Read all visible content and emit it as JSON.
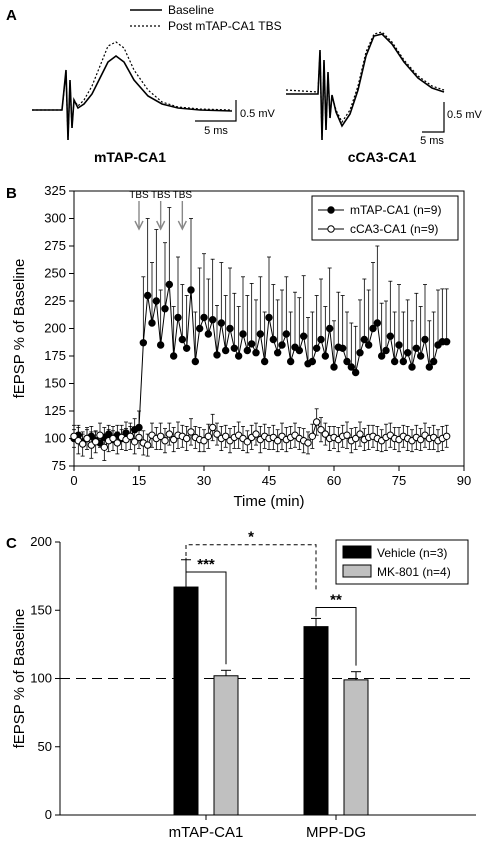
{
  "panel_a": {
    "letter": "A",
    "legend": {
      "baseline": "Baseline",
      "post": "Post mTAP-CA1 TBS"
    },
    "traces": [
      {
        "label": "mTAP-CA1",
        "time_scale": "5 ms",
        "amp_scale": "0.5 mV"
      },
      {
        "label": "cCA3-CA1",
        "time_scale": "5 ms",
        "amp_scale": "0.5 mV"
      }
    ]
  },
  "chart_data": [
    {
      "panel": "B",
      "type": "scatter",
      "xlabel": "Time (min)",
      "ylabel": "fEPSP % of Baseline",
      "xlim": [
        0,
        90
      ],
      "ylim": [
        75,
        325
      ],
      "xticks": [
        "0",
        "15",
        "30",
        "45",
        "60",
        "75",
        "90"
      ],
      "yticks": [
        "75",
        "100",
        "125",
        "150",
        "175",
        "200",
        "225",
        "250",
        "275",
        "300",
        "325"
      ],
      "annotations": [
        "TBS",
        "TBS",
        "TBS"
      ],
      "tbs_times": [
        15,
        20,
        25
      ],
      "legend_position": "top-right",
      "series": [
        {
          "name": "mTAP-CA1 (n=9)",
          "marker": "filled",
          "x": [
            0,
            1,
            2,
            3,
            4,
            5,
            6,
            7,
            8,
            9,
            10,
            11,
            12,
            13,
            14,
            15,
            16,
            17,
            18,
            19,
            20,
            21,
            22,
            23,
            24,
            25,
            26,
            27,
            28,
            29,
            30,
            31,
            32,
            33,
            34,
            35,
            36,
            37,
            38,
            39,
            40,
            41,
            42,
            43,
            44,
            45,
            46,
            47,
            48,
            49,
            50,
            51,
            52,
            53,
            54,
            55,
            56,
            57,
            58,
            59,
            60,
            61,
            62,
            63,
            64,
            65,
            66,
            67,
            68,
            69,
            70,
            71,
            72,
            73,
            74,
            75,
            76,
            77,
            78,
            79,
            80,
            81,
            82,
            83,
            84,
            85,
            86
          ],
          "y": [
            100,
            103,
            97,
            100,
            102,
            98,
            96,
            101,
            104,
            99,
            103,
            100,
            105,
            102,
            108,
            110,
            187,
            230,
            205,
            225,
            185,
            218,
            240,
            175,
            210,
            190,
            182,
            235,
            170,
            200,
            210,
            195,
            208,
            176,
            205,
            180,
            200,
            182,
            175,
            195,
            180,
            186,
            178,
            195,
            170,
            210,
            190,
            178,
            185,
            195,
            170,
            183,
            180,
            193,
            168,
            170,
            182,
            190,
            175,
            200,
            165,
            183,
            182,
            170,
            165,
            160,
            178,
            190,
            185,
            200,
            205,
            175,
            180,
            193,
            170,
            185,
            170,
            178,
            165,
            182,
            175,
            190,
            165,
            170,
            185,
            188,
            188
          ],
          "err": [
            8,
            9,
            7,
            8,
            9,
            8,
            7,
            9,
            8,
            8,
            9,
            8,
            10,
            9,
            10,
            15,
            60,
            70,
            55,
            65,
            50,
            60,
            70,
            45,
            55,
            50,
            48,
            65,
            45,
            55,
            58,
            50,
            55,
            45,
            55,
            50,
            55,
            50,
            45,
            52,
            50,
            55,
            48,
            52,
            45,
            55,
            50,
            48,
            50,
            52,
            45,
            50,
            48,
            55,
            42,
            45,
            48,
            55,
            45,
            55,
            42,
            50,
            48,
            45,
            40,
            42,
            48,
            55,
            50,
            60,
            70,
            48,
            45,
            50,
            45,
            55,
            45,
            48,
            42,
            50,
            45,
            50,
            42,
            45,
            50,
            48,
            48
          ]
        },
        {
          "name": "cCA3-CA1 (n=9)",
          "marker": "open",
          "x": [
            0,
            1,
            2,
            3,
            4,
            5,
            6,
            7,
            8,
            9,
            10,
            11,
            12,
            13,
            14,
            15,
            16,
            17,
            18,
            19,
            20,
            21,
            22,
            23,
            24,
            25,
            26,
            27,
            28,
            29,
            30,
            31,
            32,
            33,
            34,
            35,
            36,
            37,
            38,
            39,
            40,
            41,
            42,
            43,
            44,
            45,
            46,
            47,
            48,
            49,
            50,
            51,
            52,
            53,
            54,
            55,
            56,
            57,
            58,
            59,
            60,
            61,
            62,
            63,
            64,
            65,
            66,
            67,
            68,
            69,
            70,
            71,
            72,
            73,
            74,
            75,
            76,
            77,
            78,
            79,
            80,
            81,
            82,
            83,
            84,
            85,
            86
          ],
          "y": [
            102,
            98,
            95,
            100,
            94,
            97,
            103,
            92,
            98,
            100,
            96,
            101,
            99,
            102,
            97,
            101,
            96,
            94,
            103,
            100,
            102,
            98,
            104,
            99,
            103,
            102,
            100,
            106,
            101,
            99,
            98,
            102,
            110,
            104,
            100,
            102,
            98,
            101,
            103,
            100,
            97,
            101,
            104,
            99,
            102,
            100,
            101,
            98,
            102,
            99,
            101,
            103,
            100,
            98,
            96,
            102,
            115,
            108,
            104,
            100,
            101,
            99,
            102,
            103,
            98,
            100,
            104,
            99,
            101,
            102,
            100,
            98,
            101,
            103,
            100,
            99,
            102,
            100,
            98,
            101,
            99,
            103,
            100,
            101,
            98,
            100,
            102
          ],
          "err": [
            10,
            12,
            11,
            10,
            12,
            10,
            11,
            12,
            10,
            11,
            10,
            11,
            10,
            12,
            11,
            10,
            11,
            10,
            11,
            10,
            12,
            11,
            10,
            11,
            12,
            10,
            11,
            12,
            10,
            11,
            10,
            11,
            12,
            10,
            11,
            10,
            11,
            10,
            12,
            11,
            10,
            11,
            10,
            12,
            11,
            10,
            11,
            10,
            12,
            11,
            10,
            11,
            10,
            11,
            10,
            11,
            12,
            11,
            10,
            11,
            10,
            11,
            10,
            12,
            11,
            10,
            11,
            10,
            11,
            10,
            11,
            10,
            12,
            11,
            10,
            11,
            10,
            11,
            10,
            11,
            10,
            11,
            10,
            11,
            10,
            11,
            10
          ]
        }
      ]
    },
    {
      "panel": "C",
      "type": "bar",
      "ylabel": "fEPSP % of Baseline",
      "ylim": [
        0,
        200
      ],
      "yticks": [
        "0",
        "50",
        "100",
        "150",
        "200"
      ],
      "categories": [
        "mTAP-CA1",
        "MPP-DG"
      ],
      "reference_line": 100,
      "legend_position": "top-right",
      "series": [
        {
          "name": "Vehicle (n=3)",
          "color": "#000000",
          "values": [
            167,
            138
          ],
          "err": [
            20,
            6
          ]
        },
        {
          "name": "MK-801 (n=4)",
          "color": "#c0c0c0",
          "values": [
            102,
            99
          ],
          "err": [
            4,
            6
          ]
        }
      ],
      "significance": [
        {
          "label": "***",
          "between": "mTAP-CA1 Vehicle vs MK-801"
        },
        {
          "label": "**",
          "between": "MPP-DG Vehicle vs MK-801"
        },
        {
          "label": "*",
          "between": "mTAP-CA1 Vehicle vs MPP-DG Vehicle"
        }
      ]
    }
  ],
  "letters": {
    "b": "B",
    "c": "C"
  }
}
